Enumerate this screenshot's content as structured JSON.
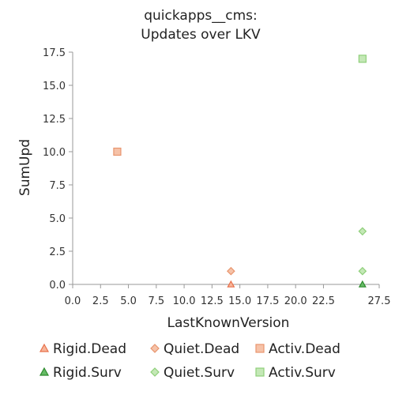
{
  "chart_data": {
    "type": "scatter",
    "title": [
      "quickapps__cms:",
      "Updates over LKV"
    ],
    "xlabel": "LastKnownVersion",
    "ylabel": "SumUpd",
    "xlim": [
      0,
      27.5
    ],
    "ylim": [
      0,
      17.5
    ],
    "xticks": [
      "0.0",
      "2.5",
      "5.0",
      "7.5",
      "10.0",
      "12.5",
      "15.0",
      "17.5",
      "20.0",
      "22.5",
      "27.5"
    ],
    "xtick_values": [
      0,
      2.5,
      5,
      7.5,
      10,
      12.5,
      15,
      17.5,
      20,
      22.5,
      27.5
    ],
    "yticks": [
      "0.0",
      "2.5",
      "5.0",
      "7.5",
      "10.0",
      "12.5",
      "15.0",
      "17.5"
    ],
    "ytick_values": [
      0,
      2.5,
      5,
      7.5,
      10,
      12.5,
      15,
      17.5
    ],
    "grid": false,
    "legend_position": "bottom",
    "series": [
      {
        "name": "Rigid.Dead",
        "marker": "triangle",
        "color": "#e8704a",
        "fill": "#f7b59a",
        "points": [
          [
            14.2,
            0
          ]
        ]
      },
      {
        "name": "Quiet.Dead",
        "marker": "diamond",
        "color": "#e8956e",
        "fill": "#f6c2a8",
        "points": [
          [
            14.2,
            1
          ]
        ]
      },
      {
        "name": "Activ.Dead",
        "marker": "square",
        "color": "#e8956e",
        "fill": "#f6c2a8",
        "points": [
          [
            4.0,
            10
          ]
        ]
      },
      {
        "name": "Rigid.Surv",
        "marker": "triangle",
        "color": "#2e8b2e",
        "fill": "#66bb66",
        "points": [
          [
            26.0,
            0
          ]
        ]
      },
      {
        "name": "Quiet.Surv",
        "marker": "diamond",
        "color": "#8fcf7a",
        "fill": "#c4e8b6",
        "points": [
          [
            26.0,
            4
          ],
          [
            26.0,
            1
          ]
        ]
      },
      {
        "name": "Activ.Surv",
        "marker": "square",
        "color": "#8fcf7a",
        "fill": "#c4e8b6",
        "points": [
          [
            26.0,
            17
          ]
        ]
      }
    ]
  }
}
